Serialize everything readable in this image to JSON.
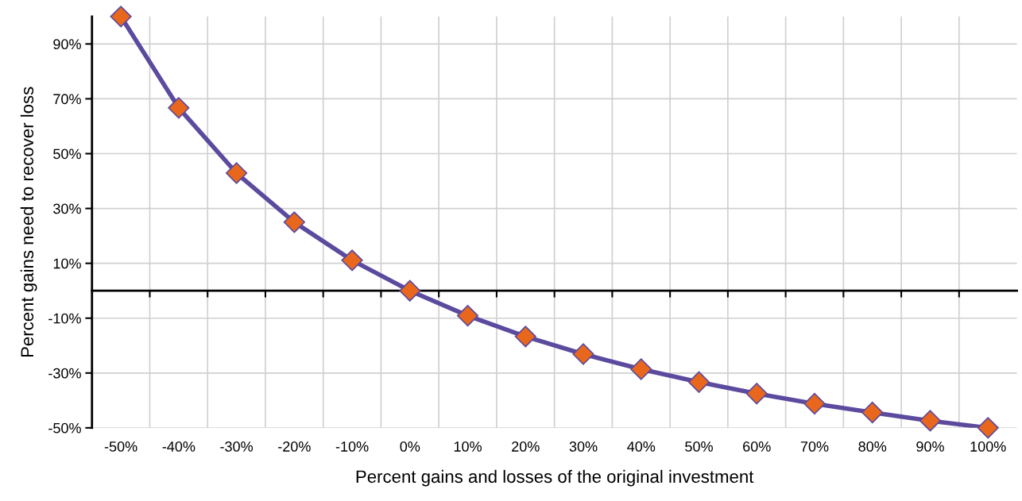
{
  "chart_data": {
    "type": "line",
    "xlabel": "Percent gains and losses of the original investment",
    "ylabel": "Percent gains need to recover loss",
    "categories": [
      "-50%",
      "-40%",
      "-30%",
      "-20%",
      "-10%",
      "0%",
      "10%",
      "20%",
      "30%",
      "40%",
      "50%",
      "60%",
      "70%",
      "80%",
      "90%",
      "100%"
    ],
    "series": [
      {
        "color": "#5b4a9e",
        "marker": "diamond",
        "line_style": "solid",
        "colors": [
          "#e8671c",
          "#e8671c",
          "#e8671c",
          "#e8671c",
          "#e8671c",
          "#e8671c",
          "#e8671c",
          "#e8671c",
          "#e8671c",
          "#e8671c",
          "#e8671c",
          "#e8671c",
          "#e8671c",
          "#e8671c",
          "#e8671c",
          "#e8671c"
        ],
        "values": [
          100,
          66.7,
          42.9,
          25,
          11.1,
          0,
          -9.1,
          -16.7,
          -23.1,
          -28.6,
          -33.3,
          -37.5,
          -41.2,
          -44.4,
          -47.4,
          -50
        ]
      }
    ],
    "ylim": [
      -50,
      100
    ],
    "yticks": [
      {
        "value": -50,
        "label": "-50%"
      },
      {
        "value": -30,
        "label": "-30%"
      },
      {
        "value": -10,
        "label": "-10%"
      },
      {
        "value": 10,
        "label": "10%"
      },
      {
        "value": 30,
        "label": "30%"
      },
      {
        "value": 50,
        "label": "50%"
      },
      {
        "value": 70,
        "label": "70%"
      },
      {
        "value": 90,
        "label": "90%"
      }
    ],
    "grid": true,
    "legend": false
  }
}
